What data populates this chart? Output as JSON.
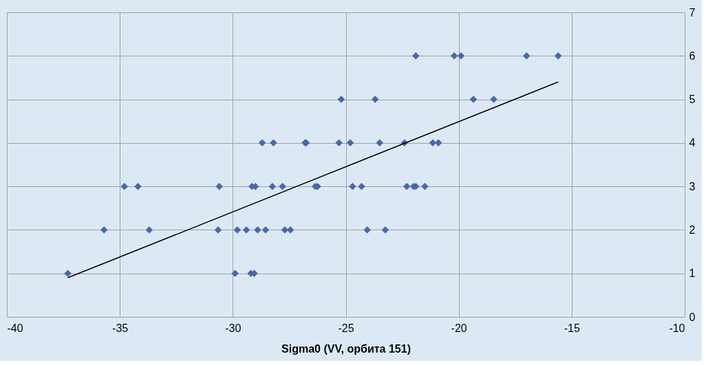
{
  "chart_data": {
    "type": "scatter",
    "xlabel": "Sigma0 (VV, орбита 151)",
    "xlim": [
      -40,
      -10
    ],
    "xticks": [
      -40,
      -35,
      -30,
      -25,
      -20,
      -15,
      -10
    ],
    "ylim": [
      0,
      7
    ],
    "yticks": [
      0,
      1,
      2,
      3,
      4,
      5,
      6,
      7
    ],
    "grid": true,
    "series": [
      {
        "color": "#4a67ad",
        "marker": "diamond",
        "x": [
          -21.9,
          -20.2,
          -19.9,
          -17.0,
          -15.6,
          -25.2,
          -23.7,
          -19.35,
          -18.45,
          -28.7,
          -28.2,
          -26.8,
          -26.75,
          -25.3,
          -24.8,
          -23.5,
          -22.4,
          -21.15,
          -20.9,
          -34.8,
          -34.2,
          -30.6,
          -29.15,
          -29.0,
          -28.25,
          -27.8,
          -26.35,
          -26.25,
          -24.7,
          -24.3,
          -22.3,
          -22.0,
          -21.9,
          -21.5,
          -35.7,
          -33.7,
          -30.65,
          -29.8,
          -29.4,
          -28.9,
          -28.55,
          -27.7,
          -27.45,
          -24.05,
          -23.25,
          -37.3,
          -29.9,
          -29.2,
          -29.05
        ],
        "values": [
          6,
          6,
          6,
          6,
          6,
          5,
          5,
          5,
          5,
          4,
          4,
          4,
          4,
          4,
          4,
          4,
          4,
          4,
          4,
          3,
          3,
          3,
          3,
          3,
          3,
          3,
          3,
          3,
          3,
          3,
          3,
          3,
          3,
          3,
          2,
          2,
          2,
          2,
          2,
          2,
          2,
          2,
          2,
          2,
          2,
          1,
          1,
          1,
          1
        ]
      },
      {
        "type": "line",
        "color": "#000000",
        "marker": "none",
        "line_style": "solid",
        "x": [
          -37.3,
          -15.6
        ],
        "values": [
          0.9,
          5.4
        ]
      }
    ]
  }
}
